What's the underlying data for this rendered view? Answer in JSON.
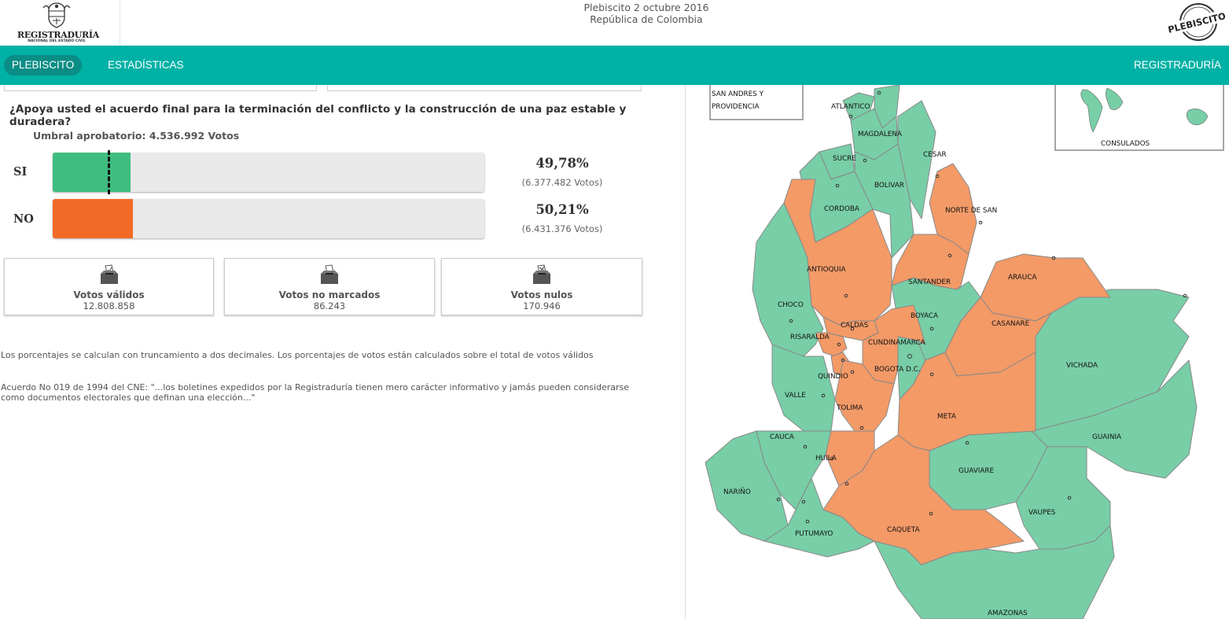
{
  "header": {
    "brand": "REGISTRADURÍA",
    "brand_sub": "NACIONAL DEL ESTADO CIVIL",
    "title_line1": "Plebiscito 2 octubre 2016",
    "title_line2": "República de Colombia",
    "stamp_text": "PLEBISCITO"
  },
  "nav": {
    "items": [
      {
        "label": "PLEBISCITO",
        "active": true
      },
      {
        "label": "ESTADÍSTICAS",
        "active": false
      }
    ],
    "right_label": "REGISTRADURÍA"
  },
  "question": "¿Apoya usted el acuerdo final para la terminación del conflicto y la construcción de una paz estable y duradera?",
  "umbral": "Umbral aprobatorio: 4.536.992 Votos",
  "options": [
    {
      "label": "SI",
      "percent": "49,78%",
      "votes": "(6.377.482 Votos)",
      "fill_fraction": 0.18,
      "color": "#3fbd80"
    },
    {
      "label": "NO",
      "percent": "50,21%",
      "votes": "(6.431.376 Votos)",
      "fill_fraction": 0.185,
      "color": "#f26a26"
    }
  ],
  "summary": [
    {
      "label": "Votos válidos",
      "value": "12.808.858",
      "icon": "ballot-box-check-icon"
    },
    {
      "label": "Votos no marcados",
      "value": "86.243",
      "icon": "ballot-box-blank-icon"
    },
    {
      "label": "Votos nulos",
      "value": "170.946",
      "icon": "ballot-box-null-icon"
    }
  ],
  "notes": {
    "percent_note": "Los porcentajes se calculan con truncamiento a dos decimales. Los porcentajes de votos están calculados sobre el total de votos válidos",
    "cne_note": "Acuerdo No 019 de 1994 del CNE: \"...los boletines expedidos por la Registraduría tienen mero carácter informativo y jamás pueden considerarse como documentos electorales que definan una elección...\""
  },
  "map": {
    "colors": {
      "si": "#78cea7",
      "no": "#f39a67"
    },
    "inset_san_andres": "SAN ANDRES Y PROVIDENCIA",
    "inset_consulados": "CONSULADOS",
    "departments": [
      {
        "name": "ATLANTICO",
        "result": "si"
      },
      {
        "name": "MAGDALENA",
        "result": "si"
      },
      {
        "name": "CESAR",
        "result": "si"
      },
      {
        "name": "SUCRE",
        "result": "si"
      },
      {
        "name": "BOLIVAR",
        "result": "si"
      },
      {
        "name": "CORDOBA",
        "result": "si"
      },
      {
        "name": "NORTE DE SAN",
        "result": "no"
      },
      {
        "name": "ANTIOQUIA",
        "result": "no"
      },
      {
        "name": "SANTANDER",
        "result": "no"
      },
      {
        "name": "ARAUCA",
        "result": "no"
      },
      {
        "name": "CHOCO",
        "result": "si"
      },
      {
        "name": "BOYACA",
        "result": "si"
      },
      {
        "name": "CALDAS",
        "result": "no"
      },
      {
        "name": "CASANARE",
        "result": "no"
      },
      {
        "name": "RISARALDA",
        "result": "no"
      },
      {
        "name": "CUNDINAMARCA",
        "result": "no"
      },
      {
        "name": "BOGOTA D.C.",
        "result": "si"
      },
      {
        "name": "QUINDIO",
        "result": "no"
      },
      {
        "name": "VICHADA",
        "result": "si"
      },
      {
        "name": "VALLE",
        "result": "si"
      },
      {
        "name": "TOLIMA",
        "result": "no"
      },
      {
        "name": "META",
        "result": "no"
      },
      {
        "name": "CAUCA",
        "result": "si"
      },
      {
        "name": "GUAINIA",
        "result": "si"
      },
      {
        "name": "HUILA",
        "result": "no"
      },
      {
        "name": "GUAVIARE",
        "result": "si"
      },
      {
        "name": "NARIÑO",
        "result": "si"
      },
      {
        "name": "VAUPES",
        "result": "si"
      },
      {
        "name": "PUTUMAYO",
        "result": "si"
      },
      {
        "name": "CAQUETA",
        "result": "no"
      },
      {
        "name": "AMAZONAS",
        "result": "si"
      }
    ]
  }
}
